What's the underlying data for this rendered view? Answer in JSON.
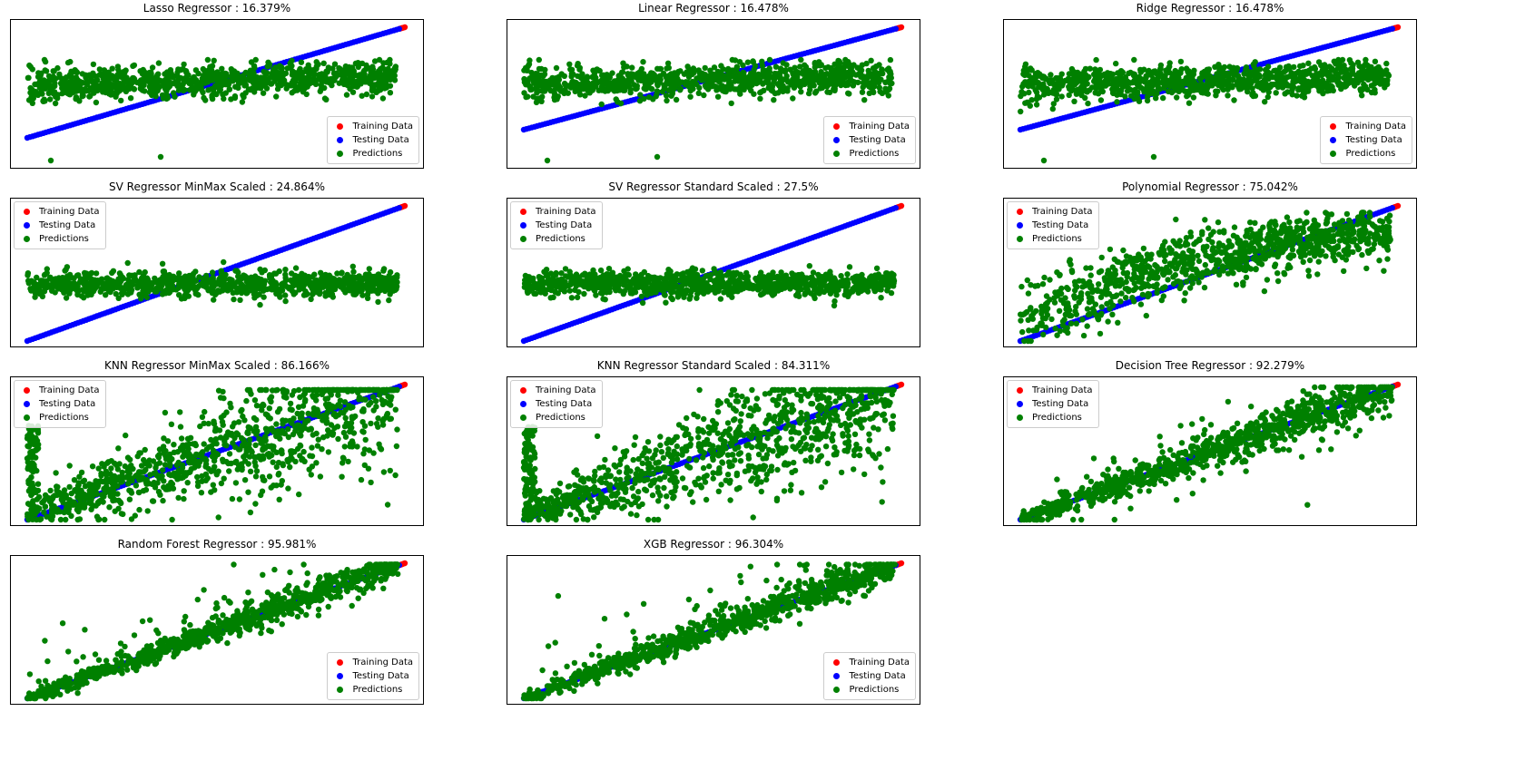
{
  "colors": {
    "training": "#ff0000",
    "testing": "#0000ff",
    "predictions": "#008000"
  },
  "legend": [
    "Training Data",
    "Testing Data",
    "Predictions"
  ],
  "chart_data": [
    {
      "type": "scatter",
      "title": "Lasso Regressor : 16.379%",
      "legend_loc": "lower-right",
      "r2": 16.379,
      "xlim": [
        0,
        1
      ],
      "ylim": [
        0,
        1
      ]
    },
    {
      "type": "scatter",
      "title": "Linear Regressor : 16.478%",
      "legend_loc": "lower-right",
      "r2": 16.478,
      "xlim": [
        0,
        1
      ],
      "ylim": [
        0,
        1
      ]
    },
    {
      "type": "scatter",
      "title": "Ridge Regressor : 16.478%",
      "legend_loc": "lower-right",
      "r2": 16.478,
      "xlim": [
        0,
        1
      ],
      "ylim": [
        0,
        1
      ]
    },
    {
      "type": "scatter",
      "title": "SV Regressor MinMax Scaled : 24.864%",
      "legend_loc": "upper-left",
      "r2": 24.864,
      "xlim": [
        0,
        1
      ],
      "ylim": [
        0,
        1
      ]
    },
    {
      "type": "scatter",
      "title": "SV Regressor Standard Scaled : 27.5%",
      "legend_loc": "upper-left",
      "r2": 27.5,
      "xlim": [
        0,
        1
      ],
      "ylim": [
        0,
        1
      ]
    },
    {
      "type": "scatter",
      "title": "Polynomial Regressor : 75.042%",
      "legend_loc": "upper-left",
      "r2": 75.042,
      "xlim": [
        0,
        1
      ],
      "ylim": [
        0,
        1
      ]
    },
    {
      "type": "scatter",
      "title": "KNN Regressor MinMax Scaled : 86.166%",
      "legend_loc": "upper-left",
      "r2": 86.166,
      "xlim": [
        0,
        1
      ],
      "ylim": [
        0,
        1
      ]
    },
    {
      "type": "scatter",
      "title": "KNN Regressor Standard Scaled : 84.311%",
      "legend_loc": "upper-left",
      "r2": 84.311,
      "xlim": [
        0,
        1
      ],
      "ylim": [
        0,
        1
      ]
    },
    {
      "type": "scatter",
      "title": "Decision Tree Regressor : 92.279%",
      "legend_loc": "upper-left",
      "r2": 92.279,
      "xlim": [
        0,
        1
      ],
      "ylim": [
        0,
        1
      ]
    },
    {
      "type": "scatter",
      "title": "Random Forest Regressor : 95.981%",
      "legend_loc": "lower-right",
      "r2": 95.981,
      "xlim": [
        0,
        1
      ],
      "ylim": [
        0,
        1
      ]
    },
    {
      "type": "scatter",
      "title": "XGB Regressor : 96.304%",
      "legend_loc": "lower-right",
      "r2": 96.304,
      "xlim": [
        0,
        1
      ],
      "ylim": [
        0,
        1
      ]
    }
  ]
}
